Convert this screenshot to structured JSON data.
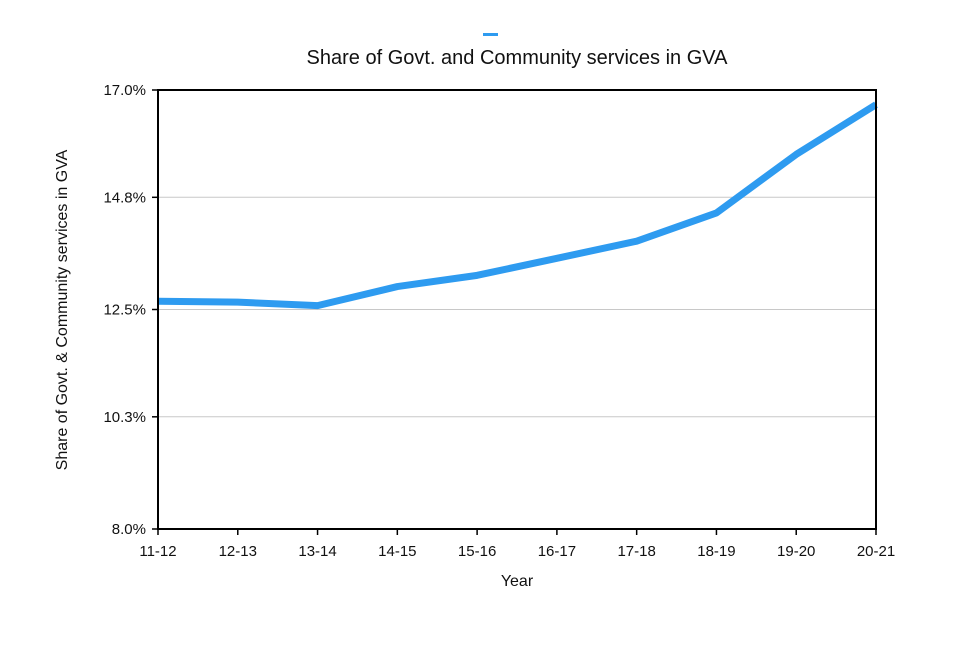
{
  "chart_data": {
    "type": "line",
    "title": "Share of Govt. and Community services in GVA",
    "xlabel": "Year",
    "ylabel": "Share of Govt. & Community services in GVA",
    "categories": [
      "11-12",
      "12-13",
      "13-14",
      "14-15",
      "15-16",
      "16-17",
      "17-18",
      "18-19",
      "19-20",
      "20-21"
    ],
    "y_ticks": [
      "8.0%",
      "10.3%",
      "12.5%",
      "14.8%",
      "17.0%"
    ],
    "ylim": [
      8.0,
      17.0
    ],
    "grid": true,
    "legend": "top-center",
    "series": [
      {
        "color": "#2E9BF0",
        "values": [
          12.67,
          12.65,
          12.58,
          12.97,
          13.2,
          13.55,
          13.9,
          14.48,
          15.68,
          16.7
        ]
      }
    ]
  }
}
